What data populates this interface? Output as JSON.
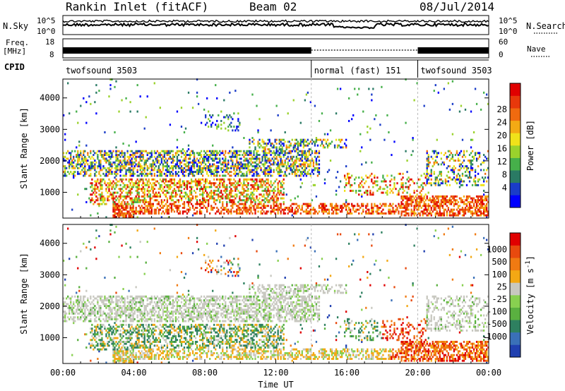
{
  "header": {
    "station": "Rankin Inlet (fitACF)",
    "beam": "Beam 02",
    "date": "08/Jul/2014"
  },
  "panel_labels": {
    "nsky": "N.Sky",
    "nsearch": "N.Search",
    "freq": "Freq.",
    "mhz": "[MHz]",
    "nave": "Nave",
    "cpid": "CPID"
  },
  "noise_axis": {
    "left_top": "10^5",
    "left_bottom": "10^0",
    "right_top": "10^5",
    "right_bottom": "10^0"
  },
  "freq_axis": {
    "left_top": "18",
    "left_bottom": "8",
    "right_top": "60",
    "right_bottom": "0"
  },
  "cpid_segments": [
    {
      "label": "twofsound 3503",
      "start_hour": 0,
      "end_hour": 14
    },
    {
      "label": "normal (fast) 151",
      "start_hour": 14,
      "end_hour": 20
    },
    {
      "label": "twofsound 3503",
      "start_hour": 20,
      "end_hour": 24
    }
  ],
  "chart_data": [
    {
      "type": "heatmap",
      "quantity": "power",
      "xlabel": "",
      "ylabel": "Slant Range [km]",
      "xlim_hours": [
        0,
        24
      ],
      "ylim": [
        180,
        4600
      ],
      "yticks": [
        "1000",
        "2000",
        "3000",
        "4000"
      ],
      "colorbar_label": "Power [dB]",
      "colorbar_ticks": [
        "4",
        "8",
        "12",
        "16",
        "20",
        "24",
        "28"
      ],
      "colorbar_colors": [
        "#0000ff",
        "#1a3cc8",
        "#2a7a64",
        "#46b04a",
        "#9ad22c",
        "#f0e21a",
        "#f3aa14",
        "#f06a0f",
        "#e8380b",
        "#e00000"
      ]
    },
    {
      "type": "heatmap",
      "quantity": "velocity",
      "xlabel": "Time UT",
      "ylabel": "Slant Range [km]",
      "xlim_hours": [
        0,
        24
      ],
      "ylim": [
        180,
        4600
      ],
      "yticks": [
        "1000",
        "2000",
        "3000",
        "4000"
      ],
      "xticks": [
        "00:00",
        "04:00",
        "08:00",
        "12:00",
        "16:00",
        "20:00",
        "00:00"
      ],
      "colorbar_label": "Velocity [m s",
      "colorbar_label_sup": "-1",
      "colorbar_label_end": "]",
      "colorbar_ticks": [
        "1000",
        "500",
        "100",
        "25",
        "-25",
        "-100",
        "-500",
        "-1000"
      ],
      "colorbar_colors": [
        "#2040b0",
        "#3a70b8",
        "#2e8060",
        "#5ab040",
        "#88d050",
        "#c8c8c0",
        "#f3a814",
        "#f07a12",
        "#e84a0e",
        "#e00000"
      ]
    }
  ]
}
